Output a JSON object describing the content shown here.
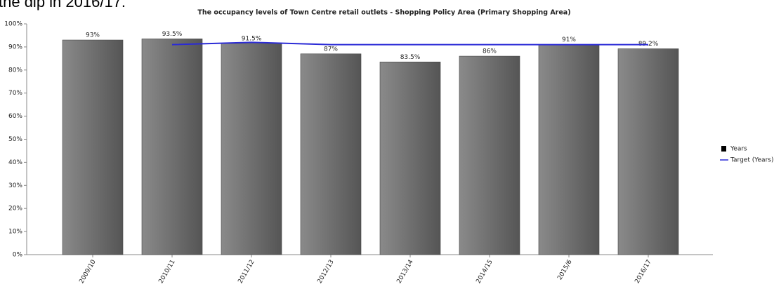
{
  "caption": "the dip in 2016/17.",
  "chart_data": {
    "type": "bar",
    "title": "The occupancy levels of Town Centre retail outlets - Shopping Policy Area (Primary Shopping Area)",
    "categories": [
      "2009/10",
      "2010/11",
      "2011/12",
      "2012/13",
      "2013/14",
      "2014/15",
      "2015/6",
      "2016/17"
    ],
    "series": [
      {
        "name": "Years",
        "type": "bar",
        "color": "#6e6e6e",
        "values": [
          93,
          93.5,
          91.5,
          87,
          83.5,
          86,
          91,
          89.2
        ],
        "value_labels": [
          "93%",
          "93.5%",
          "91.5%",
          "87%",
          "83.5%",
          "86%",
          "91%",
          "89.2%"
        ]
      },
      {
        "name": "Target (Years)",
        "type": "line",
        "color": "#2b2bd6",
        "values": [
          null,
          91,
          92,
          91,
          91,
          91,
          91,
          91
        ]
      }
    ],
    "ylim": [
      0,
      100
    ],
    "yticks": [
      {
        "value": 0,
        "label": "0%"
      },
      {
        "value": 10,
        "label": "10%"
      },
      {
        "value": 20,
        "label": "20%"
      },
      {
        "value": 30,
        "label": "30%"
      },
      {
        "value": 40,
        "label": "40%"
      },
      {
        "value": 50,
        "label": "50%"
      },
      {
        "value": 60,
        "label": "60%"
      },
      {
        "value": 70,
        "label": "70%"
      },
      {
        "value": 80,
        "label": "80%"
      },
      {
        "value": 90,
        "label": "90%"
      },
      {
        "value": 100,
        "label": "100%"
      }
    ],
    "legend": "right"
  }
}
